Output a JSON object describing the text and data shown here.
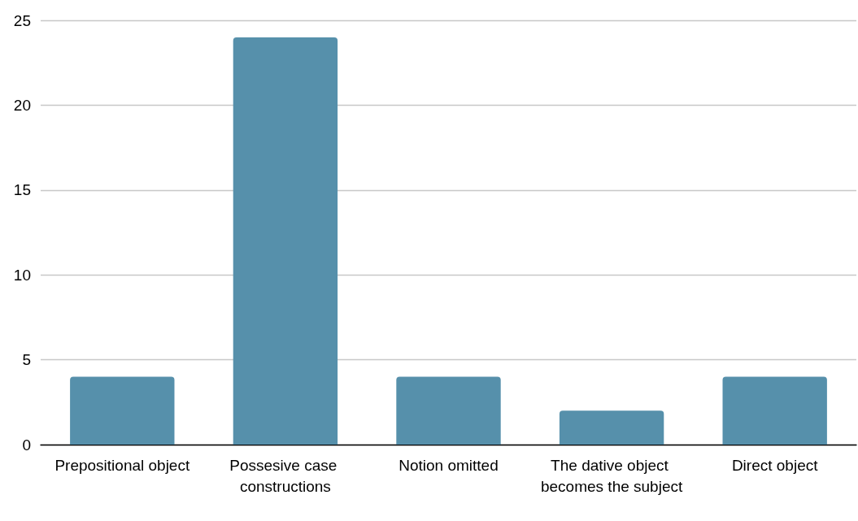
{
  "chart_data": {
    "type": "bar",
    "categories": [
      "Prepositional object",
      "Possesive case constructions",
      "Notion omitted",
      "The dative object becomes the subject",
      "Direct object"
    ],
    "values": [
      4,
      24,
      4,
      2,
      4
    ],
    "color": "#5690ab",
    "ylim": [
      0,
      25
    ],
    "yticks": [
      0,
      5,
      10,
      15,
      20,
      25
    ],
    "grid": "y"
  }
}
